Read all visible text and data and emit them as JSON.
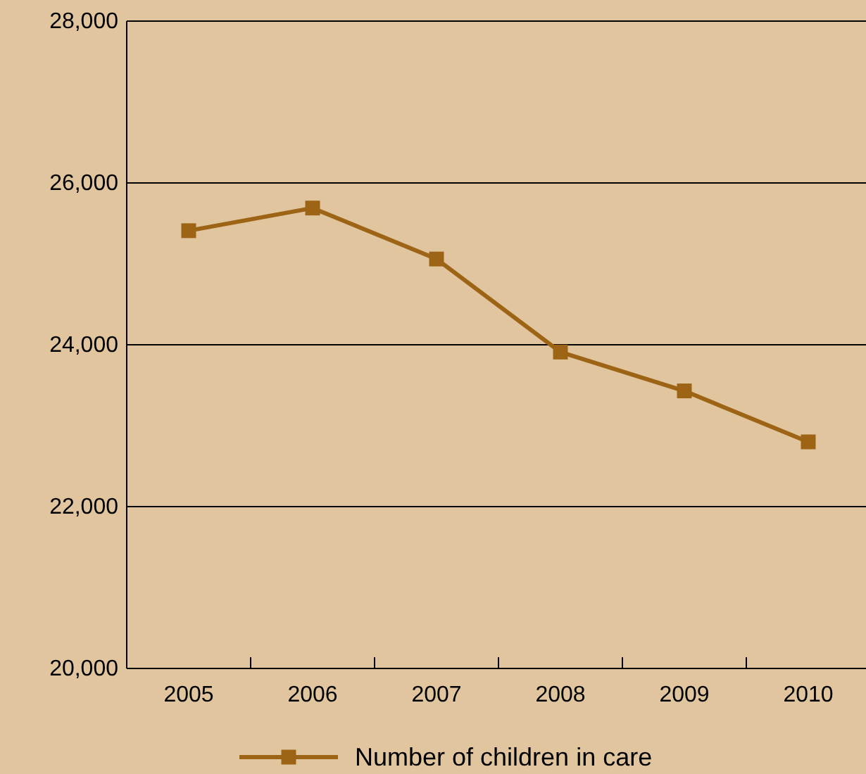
{
  "chart_data": {
    "type": "line",
    "categories": [
      "2005",
      "2006",
      "2007",
      "2008",
      "2009",
      "2010"
    ],
    "series": [
      {
        "name": "Number of children in care",
        "color": "#9c6414",
        "values": [
          25410,
          25690,
          25060,
          23910,
          23430,
          22800
        ]
      }
    ],
    "ylim": [
      20000,
      28000
    ],
    "yticks": [
      {
        "value": 20000,
        "label": "20,000"
      },
      {
        "value": 22000,
        "label": "22,000"
      },
      {
        "value": 24000,
        "label": "24,000"
      },
      {
        "value": 26000,
        "label": "26,000"
      },
      {
        "value": 28000,
        "label": "28,000"
      }
    ],
    "grid": "y",
    "legend": "bottom",
    "marker": "square",
    "line_style": "solid"
  }
}
